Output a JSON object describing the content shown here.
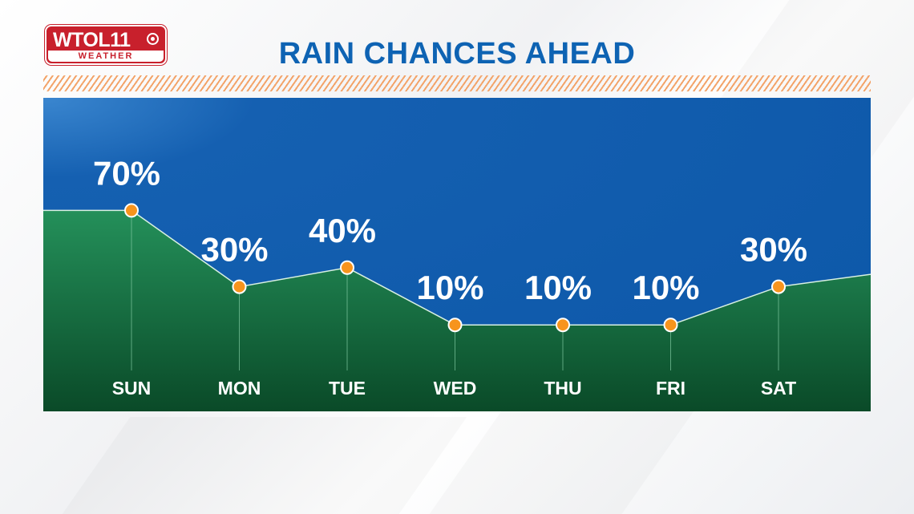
{
  "logo": {
    "main": "WTOL11",
    "sub": "WEATHER",
    "network_icon": "cbs-eye-icon"
  },
  "title": "RAIN CHANCES AHEAD",
  "colors": {
    "title": "#0e63b3",
    "logo": "#c8202c",
    "hatch": "#f3a46a",
    "panel": "#0c57a8",
    "area_top": "#24905a",
    "area_bottom": "#0a4a28",
    "marker": "#f7941d"
  },
  "chart_data": {
    "type": "area",
    "title": "RAIN CHANCES AHEAD",
    "categories": [
      "SUN",
      "MON",
      "TUE",
      "WED",
      "THU",
      "FRI",
      "SAT"
    ],
    "values": [
      70,
      30,
      40,
      10,
      10,
      10,
      30
    ],
    "value_labels": [
      "70%",
      "30%",
      "40%",
      "10%",
      "10%",
      "10%",
      "30%"
    ],
    "unit": "%",
    "grid": false,
    "legend": "none",
    "markers": "dot"
  }
}
